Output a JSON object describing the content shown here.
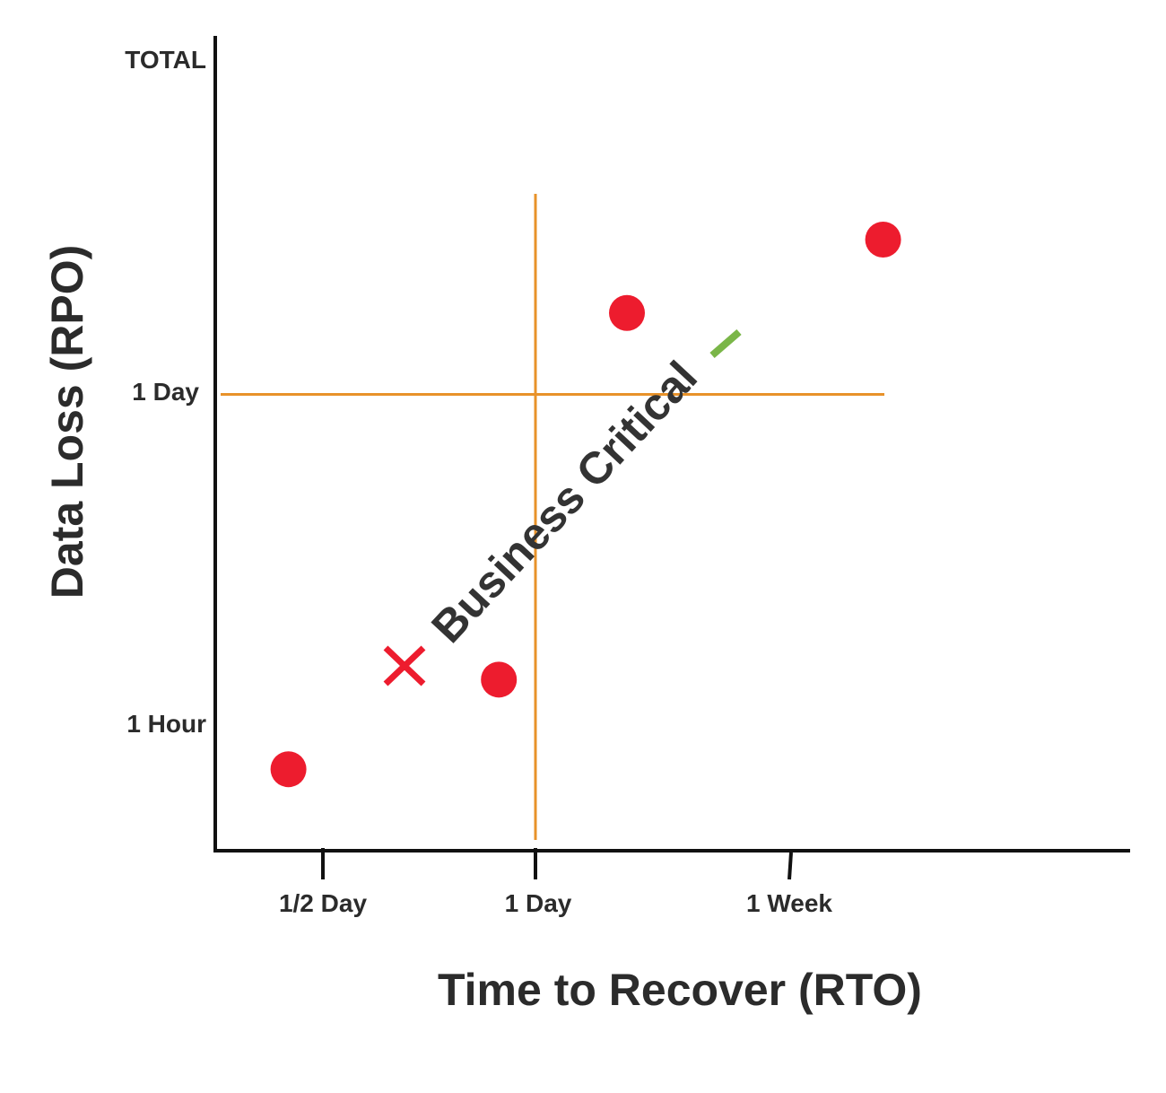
{
  "chart_data": {
    "type": "scatter",
    "xlabel": "Time to Recover (RTO)",
    "ylabel": "Data Loss (RPO)",
    "x_ticks": [
      "1/2 Day",
      "1 Day",
      "1 Week"
    ],
    "y_ticks": [
      "TOTAL",
      "1 Day",
      "1 Hour"
    ],
    "xlim": [
      0,
      10
    ],
    "ylim": [
      0,
      10
    ],
    "points": [
      {
        "x": 0.8,
        "y": 1.0
      },
      {
        "x": 3.1,
        "y": 2.1
      },
      {
        "x": 4.5,
        "y": 6.6
      },
      {
        "x": 7.3,
        "y": 7.5
      }
    ],
    "thresholds": {
      "x": 3.5,
      "y": 5.6
    },
    "annotation": {
      "text": "Business Critical",
      "cross_symbol": "✕",
      "check_symbol": "✓"
    },
    "colors": {
      "points": "#ed1c2e",
      "threshold_lines": "#e8922a",
      "axes": "#111111",
      "cross": "#ed1c2e",
      "check": "#7ab648",
      "text": "#2b2b2b"
    }
  }
}
